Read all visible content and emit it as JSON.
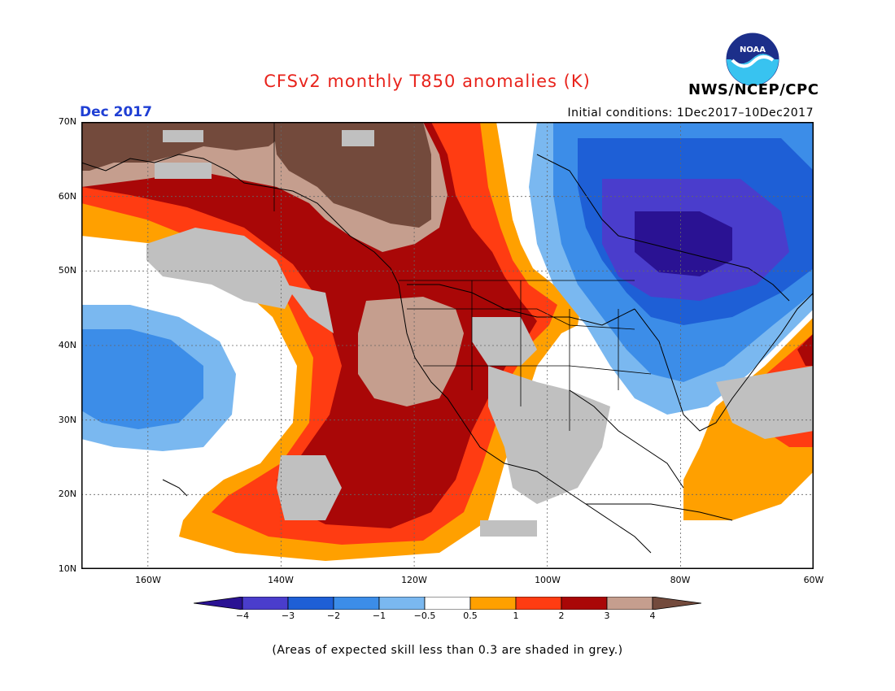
{
  "header": {
    "title": "CFSv2 monthly T850 anomalies (K)",
    "agency": "NWS/NCEP/CPC",
    "logo_text": "NOAA",
    "period": "Dec 2017",
    "initial_conditions": "Initial conditions: 1Dec2017–10Dec2017"
  },
  "map": {
    "lat_labels": [
      "70N",
      "60N",
      "50N",
      "40N",
      "30N",
      "20N",
      "10N"
    ],
    "lon_labels": [
      "160W",
      "140W",
      "120W",
      "100W",
      "80W",
      "60W"
    ],
    "lat_range": [
      10,
      70
    ],
    "lon_range": [
      -170,
      -60
    ],
    "land_overlay_color": "#c0c0c0",
    "coastline_color": "#000000"
  },
  "legend": {
    "colors": [
      "#2a1293",
      "#4a3dcc",
      "#1e5fd6",
      "#3c8de8",
      "#7ab8f0",
      "#ffffff",
      "#ffa000",
      "#ff3c12",
      "#a90707",
      "#c59e8e",
      "#734a3c"
    ],
    "tick_labels": [
      "−4",
      "−3",
      "−2",
      "−1",
      "−0.5",
      "0.5",
      "1",
      "2",
      "3",
      "4"
    ],
    "note": "(Areas of expected skill less than 0.3 are shaded in grey.)"
  }
}
